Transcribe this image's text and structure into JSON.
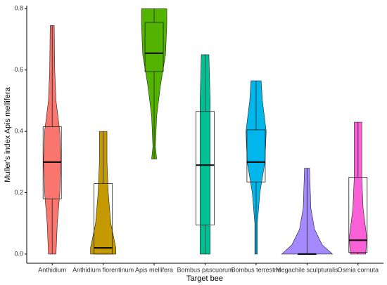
{
  "chart_data": {
    "type": "violin",
    "x_label": "Target bee",
    "y_label": "Muller's index Apis mellifera",
    "ylim": [
      -0.03,
      0.81
    ],
    "yticks": [
      {
        "value": 0,
        "label": "0.0"
      },
      0.2,
      0.4,
      0.6,
      0.8
    ],
    "series": [
      {
        "name": "Anthidium",
        "color": "#F8766D",
        "values": [
          0,
          0.18,
          0.3,
          0.415,
          0.745
        ],
        "density": [
          [
            0,
            0.15
          ],
          [
            0.1,
            0.2
          ],
          [
            0.2,
            0.3
          ],
          [
            0.3,
            0.35
          ],
          [
            0.4,
            0.3
          ],
          [
            0.5,
            0.15
          ],
          [
            0.6,
            0.1
          ],
          [
            0.745,
            0.08
          ]
        ]
      },
      {
        "name": "Anthidium florentinum",
        "color": "#C49A00",
        "values": [
          0,
          0,
          0.02,
          0.23,
          0.4
        ],
        "density": [
          [
            0,
            0.5
          ],
          [
            0.02,
            0.5
          ],
          [
            0.1,
            0.3
          ],
          [
            0.2,
            0.2
          ],
          [
            0.3,
            0.15
          ],
          [
            0.4,
            0.15
          ]
        ]
      },
      {
        "name": "Apis mellifera",
        "color": "#53B400",
        "values": [
          0.31,
          0.595,
          0.655,
          0.755,
          0.8
        ],
        "density": [
          [
            0.31,
            0.1
          ],
          [
            0.35,
            0.05
          ],
          [
            0.45,
            0.1
          ],
          [
            0.55,
            0.25
          ],
          [
            0.65,
            0.45
          ],
          [
            0.75,
            0.5
          ],
          [
            0.8,
            0.5
          ]
        ]
      },
      {
        "name": "Bombus pascuorum",
        "color": "#00C094",
        "values": [
          0,
          0.095,
          0.29,
          0.465,
          0.65
        ],
        "density": [
          [
            0,
            0.2
          ],
          [
            0.2,
            0.2
          ],
          [
            0.4,
            0.2
          ],
          [
            0.5,
            0.2
          ],
          [
            0.65,
            0.15
          ]
        ]
      },
      {
        "name": "Bombus terrestris",
        "color": "#00B6EB",
        "values": [
          0,
          0.235,
          0.3,
          0.405,
          0.565
        ],
        "density": [
          [
            0,
            0.05
          ],
          [
            0.1,
            0.05
          ],
          [
            0.2,
            0.15
          ],
          [
            0.3,
            0.35
          ],
          [
            0.4,
            0.4
          ],
          [
            0.5,
            0.25
          ],
          [
            0.565,
            0.2
          ]
        ]
      },
      {
        "name": "Megachile sculpturalis",
        "color": "#A58AFF",
        "values": [
          0,
          0,
          0,
          0,
          0.28
        ],
        "density": [
          [
            0,
            1
          ],
          [
            0.03,
            0.6
          ],
          [
            0.08,
            0.3
          ],
          [
            0.15,
            0.15
          ],
          [
            0.28,
            0.1
          ]
        ]
      },
      {
        "name": "Osmia cornuta",
        "color": "#FB61D7",
        "values": [
          0,
          0.005,
          0.045,
          0.25,
          0.43
        ],
        "density": [
          [
            0,
            0.3
          ],
          [
            0.05,
            0.35
          ],
          [
            0.15,
            0.2
          ],
          [
            0.25,
            0.15
          ],
          [
            0.35,
            0.15
          ],
          [
            0.43,
            0.15
          ]
        ]
      }
    ]
  }
}
